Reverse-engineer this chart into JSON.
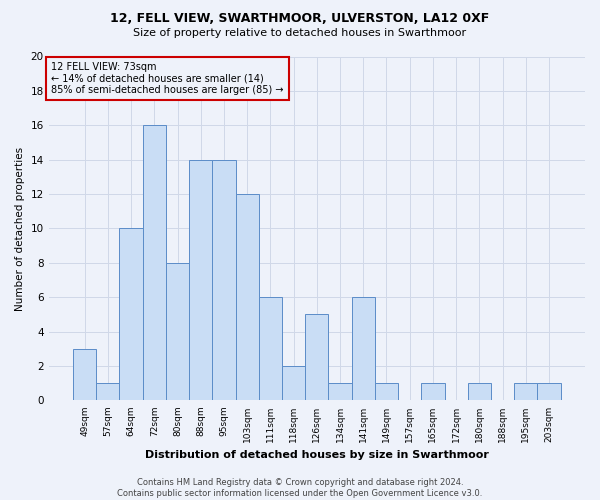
{
  "title1": "12, FELL VIEW, SWARTHMOOR, ULVERSTON, LA12 0XF",
  "title2": "Size of property relative to detached houses in Swarthmoor",
  "xlabel": "Distribution of detached houses by size in Swarthmoor",
  "ylabel": "Number of detached properties",
  "footer1": "Contains HM Land Registry data © Crown copyright and database right 2024.",
  "footer2": "Contains public sector information licensed under the Open Government Licence v3.0.",
  "annotation_line1": "12 FELL VIEW: 73sqm",
  "annotation_line2": "← 14% of detached houses are smaller (14)",
  "annotation_line3": "85% of semi-detached houses are larger (85) →",
  "bar_labels": [
    "49sqm",
    "57sqm",
    "64sqm",
    "72sqm",
    "80sqm",
    "88sqm",
    "95sqm",
    "103sqm",
    "111sqm",
    "118sqm",
    "126sqm",
    "134sqm",
    "141sqm",
    "149sqm",
    "157sqm",
    "165sqm",
    "172sqm",
    "180sqm",
    "188sqm",
    "195sqm",
    "203sqm"
  ],
  "bar_values": [
    3,
    1,
    10,
    16,
    8,
    14,
    14,
    12,
    6,
    2,
    5,
    1,
    6,
    1,
    0,
    1,
    0,
    1,
    0,
    1,
    1
  ],
  "bar_color": "#c9ddf5",
  "bar_edge_color": "#5b8cc8",
  "ylim": [
    0,
    20
  ],
  "yticks": [
    0,
    2,
    4,
    6,
    8,
    10,
    12,
    14,
    16,
    18,
    20
  ],
  "annotation_box_color": "#cc0000",
  "grid_color": "#d0d8e8",
  "bg_color": "#eef2fa"
}
